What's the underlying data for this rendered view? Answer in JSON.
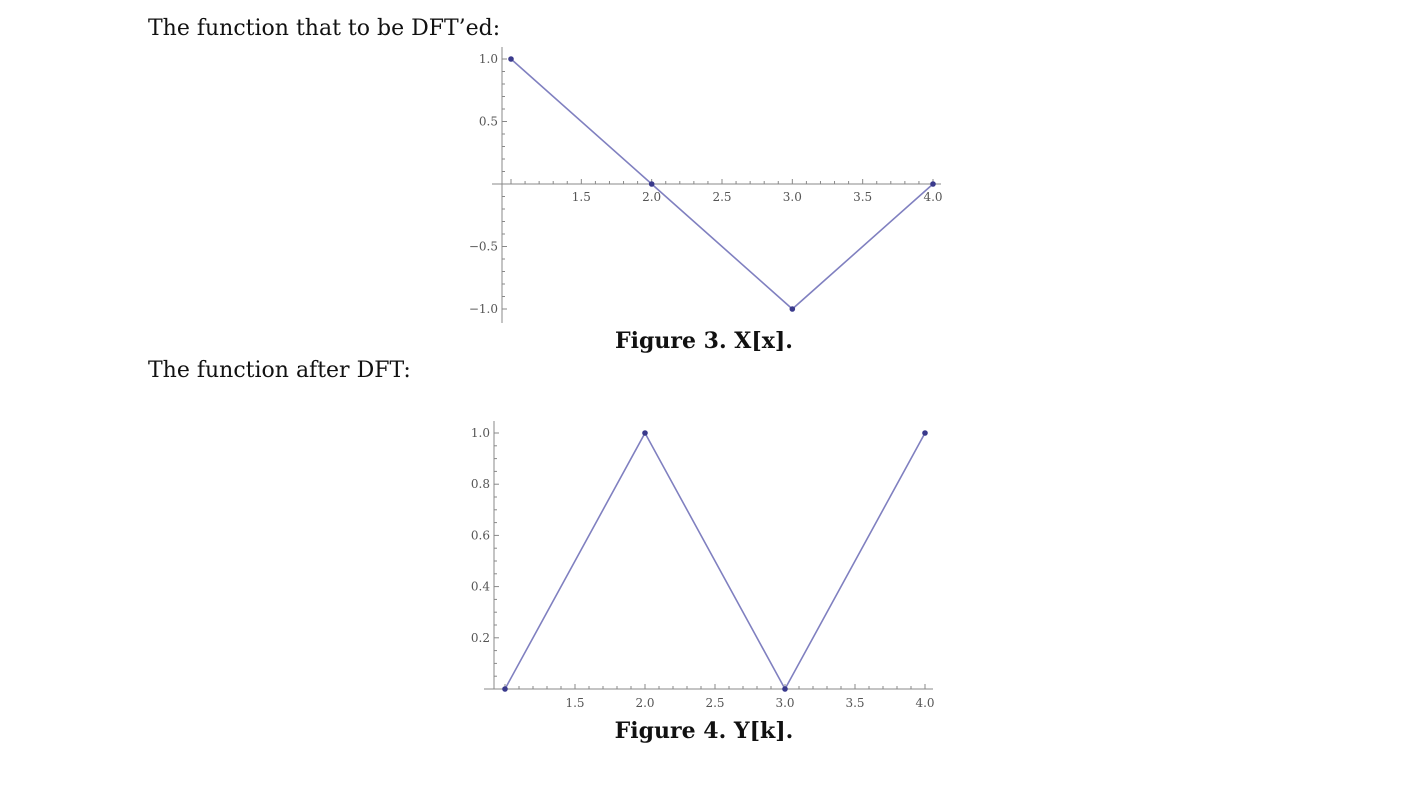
{
  "document": {
    "paragraph_1": "The function that to be DFT’ed:",
    "paragraph_2": "The function after DFT:"
  },
  "chart_data": [
    {
      "type": "line",
      "caption": "Figure 3. X[x].",
      "title": "",
      "xlabel": "",
      "ylabel": "",
      "x": [
        1,
        2,
        3,
        4
      ],
      "series": [
        {
          "values": [
            1,
            0,
            -1,
            0
          ],
          "color": "#8080c0",
          "markers": true
        }
      ],
      "xlim": [
        1,
        4
      ],
      "ylim": [
        -1,
        1
      ],
      "x_ticks": [
        "1.5",
        "2.0",
        "2.5",
        "3.0",
        "3.5",
        "4.0"
      ],
      "y_ticks": [
        "1.0",
        "0.5",
        "−0.5",
        "−1.0"
      ],
      "grid": false,
      "marker_color": "#3a3a8c"
    },
    {
      "type": "line",
      "caption": "Figure 4. Y[k].",
      "title": "",
      "xlabel": "",
      "ylabel": "",
      "x": [
        1,
        2,
        3,
        4
      ],
      "series": [
        {
          "values": [
            0,
            1,
            0,
            1
          ],
          "color": "#8080c0",
          "markers": true
        }
      ],
      "xlim": [
        1,
        4
      ],
      "ylim": [
        0,
        1
      ],
      "x_ticks": [
        "1.5",
        "2.0",
        "2.5",
        "3.0",
        "3.5",
        "4.0"
      ],
      "y_ticks": [
        "1.0",
        "0.8",
        "0.6",
        "0.4",
        "0.2"
      ],
      "grid": false,
      "marker_color": "#3a3a8c"
    }
  ]
}
